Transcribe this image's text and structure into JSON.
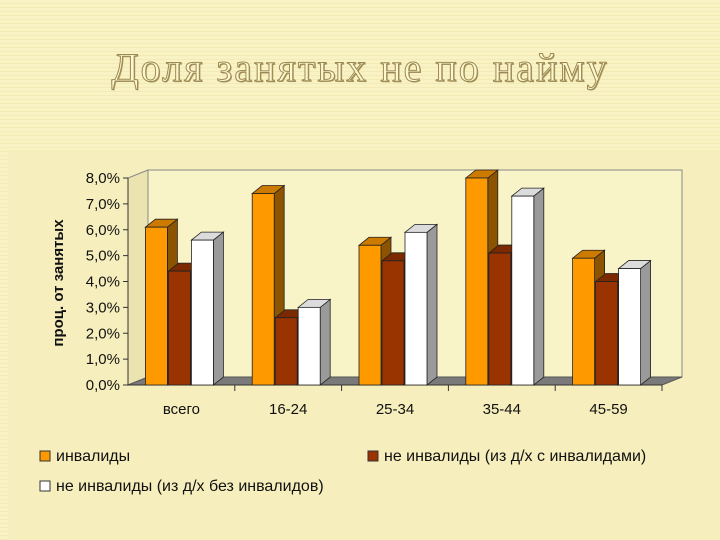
{
  "slide": {
    "title": "Доля занятых не по найму"
  },
  "chart_data": {
    "type": "bar",
    "title": "",
    "xlabel": "",
    "ylabel": "проц. от занятых",
    "ylim": [
      0,
      8
    ],
    "yticks": [
      "0,0%",
      "1,0%",
      "2,0%",
      "3,0%",
      "4,0%",
      "5,0%",
      "6,0%",
      "7,0%",
      "8,0%"
    ],
    "categories": [
      "всего",
      "16-24",
      "25-34",
      "35-44",
      "45-59"
    ],
    "series": [
      {
        "name": "инвалиды",
        "values": [
          6.1,
          7.4,
          5.4,
          8.0,
          4.9
        ],
        "color": "#ff9900"
      },
      {
        "name": "не инвалиды (из д/х с инвалидами)",
        "values": [
          4.4,
          2.6,
          4.8,
          5.1,
          4.0
        ],
        "color": "#993300"
      },
      {
        "name": "не инвалиды (из д/х без инвалидов)",
        "values": [
          5.6,
          3.0,
          5.9,
          7.3,
          4.5
        ],
        "color": "#ffffff"
      }
    ],
    "grid": false,
    "legend_position": "bottom",
    "style": "3d"
  }
}
